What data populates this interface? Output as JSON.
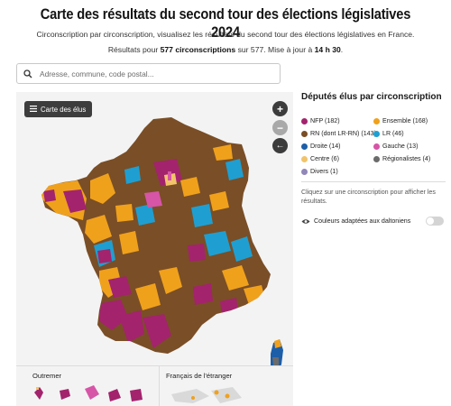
{
  "header": {
    "title": "Carte des résultats du second tour des élections législatives 2024",
    "subtitle": "Circonscription par circonscription, visualisez les résultats du second tour des élections législatives en France.",
    "results_prefix": "Résultats pour ",
    "results_count": "577 circonscriptions",
    "results_middle": " sur 577. Mise à jour à ",
    "results_time": "14 h 30",
    "results_suffix": "."
  },
  "search": {
    "placeholder": "Adresse, commune, code postal..."
  },
  "map": {
    "elus_button_label": "Carte des élus",
    "zoom_in_label": "+",
    "zoom_out_label": "−",
    "back_label": "←",
    "insets": {
      "outremer_label": "Outremer",
      "etranger_label": "Français de l'étranger"
    }
  },
  "sidebar": {
    "title": "Députés élus par circonscription",
    "legend": [
      {
        "label": "NFP (182)",
        "color": "#a3236d"
      },
      {
        "label": "Ensemble (168)",
        "color": "#f0a11c"
      },
      {
        "label": "RN (dont LR-RN) (143)",
        "color": "#7a4e26"
      },
      {
        "label": "LR (46)",
        "color": "#1f9fd1"
      },
      {
        "label": "Droite (14)",
        "color": "#1c5ea8"
      },
      {
        "label": "Gauche (13)",
        "color": "#d655a6"
      },
      {
        "label": "Centre (6)",
        "color": "#f1c46a"
      },
      {
        "label": "Régionalistes (4)",
        "color": "#6b6b6b"
      },
      {
        "label": "Divers (1)",
        "color": "#9187b8"
      }
    ],
    "hint": "Cliquez sur une circonscription pour afficher les résultats.",
    "colorblind_label": "Couleurs adaptées aux daltoniens"
  }
}
